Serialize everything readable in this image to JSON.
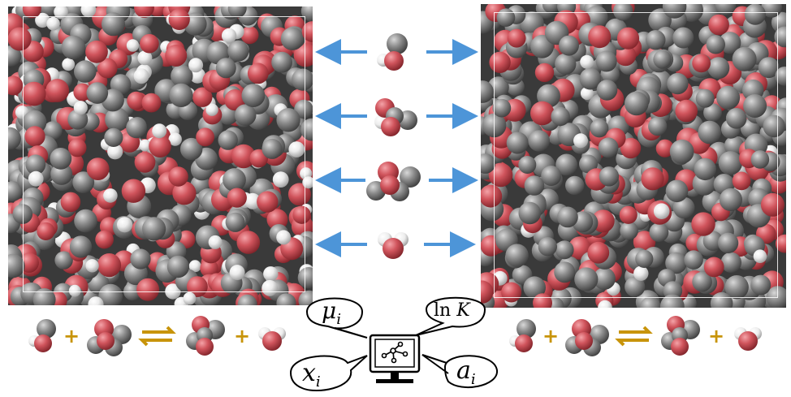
{
  "colors": {
    "oxygen": "#d0545c",
    "carbon": "#8c8c8c",
    "hydrogen": "#f0f0f0",
    "arrow": "#4d95d8",
    "equilibrium": "#c8940a",
    "plus": "#c8940a"
  },
  "molecules": [
    {
      "name": "methanol"
    },
    {
      "name": "dimethyl-carbonate"
    },
    {
      "name": "ethylene-carbonate"
    },
    {
      "name": "water"
    }
  ],
  "reaction": {
    "plus_symbol": "+",
    "equilibrium_symbol": "⇌"
  },
  "bubbles": {
    "mu": {
      "symbol": "μ",
      "subscript": "i"
    },
    "lnK": {
      "text": "ln ",
      "symbol": "K"
    },
    "x": {
      "symbol": "x",
      "subscript": "i"
    },
    "a": {
      "symbol": "a",
      "subscript": "i"
    }
  },
  "computer": {
    "icon": "network-graph-icon"
  }
}
